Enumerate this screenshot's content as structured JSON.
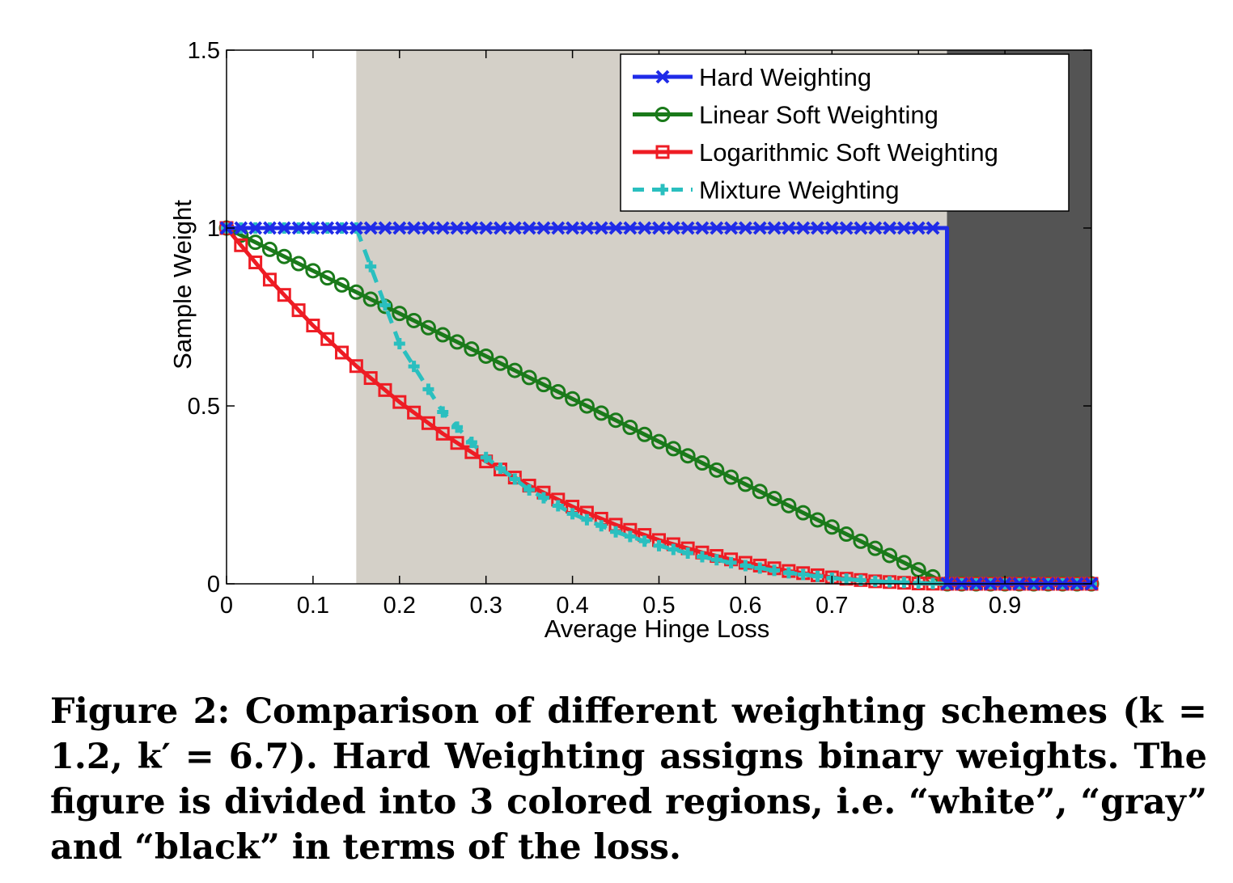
{
  "chart_data": {
    "type": "line",
    "xlabel": "Average Hinge Loss",
    "ylabel": "Sample Weight",
    "xlim": [
      0,
      1
    ],
    "ylim": [
      0,
      1.5
    ],
    "x_ticks": [
      0,
      0.1,
      0.2,
      0.3,
      0.4,
      0.5,
      0.6,
      0.7,
      0.8,
      0.9
    ],
    "x_tick_labels": [
      "0",
      "0.1",
      "0.2",
      "0.3",
      "0.4",
      "0.5",
      "0.6",
      "0.7",
      "0.8",
      "0.9"
    ],
    "y_ticks": [
      0,
      0.5,
      1,
      1.5
    ],
    "y_tick_labels": [
      "0",
      "0.5",
      "1",
      "1.5"
    ],
    "grid": false,
    "legend_position": "top-right",
    "regions": [
      {
        "name": "white",
        "x_from": 0,
        "x_to": 0.15,
        "color": "#ffffff"
      },
      {
        "name": "gray",
        "x_from": 0.15,
        "x_to": 0.833,
        "color": "#d4d0c8"
      },
      {
        "name": "black",
        "x_from": 0.833,
        "x_to": 1.0,
        "color": "#545454"
      }
    ],
    "series": [
      {
        "name": "Hard Weighting",
        "color": "#1f2be8",
        "marker": "x-cross",
        "line_style": "solid",
        "x": [
          0,
          0.833,
          0.833,
          0.84,
          1.0
        ],
        "y": [
          1,
          1,
          0,
          0,
          0
        ]
      },
      {
        "name": "Linear Soft Weighting",
        "color": "#1a7a1a",
        "marker": "circle",
        "line_style": "solid",
        "x": [
          0,
          0.833,
          0.84,
          1.0
        ],
        "y": [
          1,
          0,
          0,
          0
        ]
      },
      {
        "name": "Logarithmic Soft Weighting",
        "color": "#ee1c24",
        "marker": "square",
        "line_style": "solid",
        "x": [
          0,
          0.05,
          0.1,
          0.15,
          0.2,
          0.25,
          0.3,
          0.35,
          0.4,
          0.45,
          0.5,
          0.55,
          0.6,
          0.65,
          0.7,
          0.75,
          0.8,
          0.833,
          0.84,
          1.0
        ],
        "y": [
          1,
          0.855,
          0.726,
          0.612,
          0.511,
          0.422,
          0.344,
          0.276,
          0.217,
          0.166,
          0.123,
          0.088,
          0.059,
          0.036,
          0.018,
          0.007,
          0.001,
          0,
          0,
          0
        ]
      },
      {
        "name": "Mixture Weighting",
        "color": "#2abfbf",
        "marker": "plus",
        "line_style": "dashed",
        "x": [
          0,
          0.15,
          0.2,
          0.25,
          0.3,
          0.35,
          0.4,
          0.45,
          0.5,
          0.55,
          0.6,
          0.65,
          0.7,
          0.75,
          0.8,
          0.833,
          0.84,
          1.0
        ],
        "y": [
          1,
          1,
          0.675,
          0.483,
          0.355,
          0.264,
          0.197,
          0.146,
          0.107,
          0.076,
          0.051,
          0.031,
          0.016,
          0.007,
          0.002,
          0,
          0,
          0
        ]
      }
    ]
  },
  "caption": {
    "text": "Figure 2: Comparison of different weighting schemes (k = 1.2, k′ = 6.7). Hard Weighting assigns binary weights. The figure is divided into 3 colored regions, i.e. “white”, “gray” and “black” in terms of the loss."
  }
}
